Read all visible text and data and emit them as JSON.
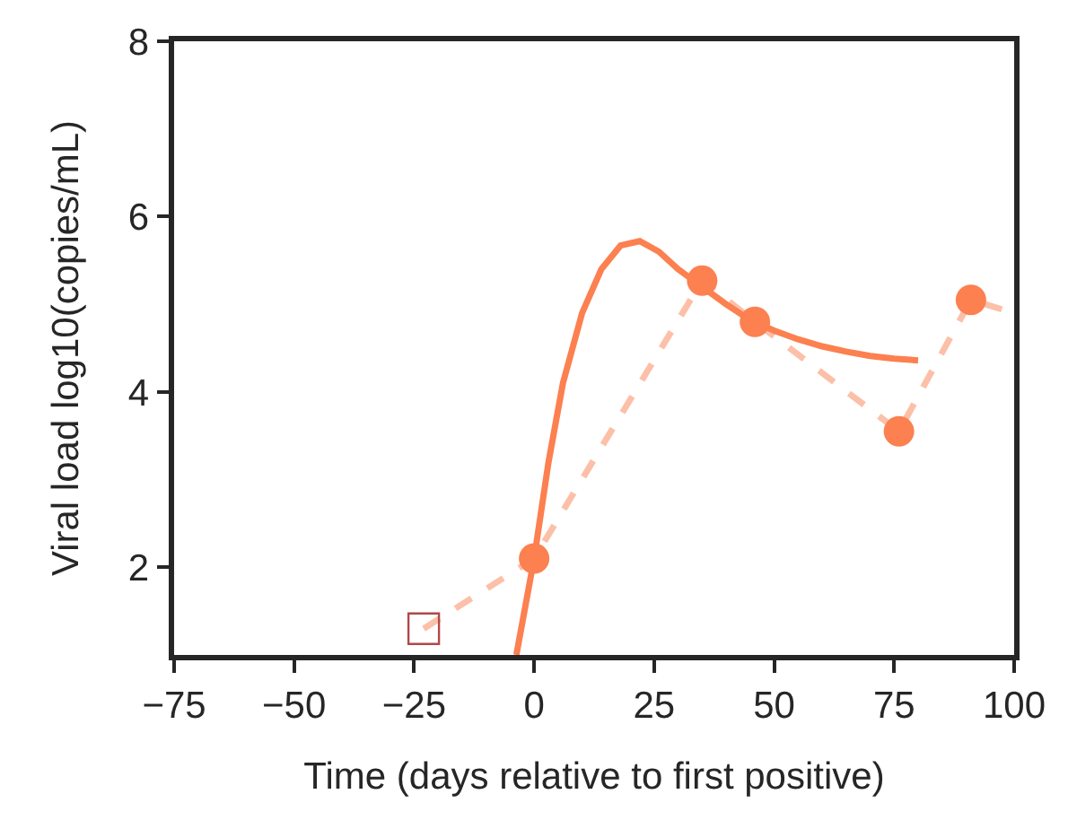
{
  "chart_data": {
    "type": "scatter",
    "xlabel": "Time (days relative to first positive)",
    "ylabel": "Viral load log10(copies/mL)",
    "xlim": [
      -75,
      100
    ],
    "xticks": [
      {
        "value": -75,
        "label": "−75"
      },
      {
        "value": -50,
        "label": "−50"
      },
      {
        "value": -25,
        "label": "−25"
      },
      0,
      25,
      50,
      75,
      100
    ],
    "ylim": [
      1,
      8
    ],
    "yticks": [
      2,
      4,
      6,
      8
    ],
    "grid": false,
    "series": [
      {
        "type": "line",
        "color": "#fcc0a8",
        "line_style": "dashed",
        "marker": "none",
        "x": [
          -23,
          0,
          35,
          46,
          76,
          91,
          100
        ],
        "values": [
          1.3,
          2.1,
          5.27,
          4.8,
          3.55,
          5.05,
          4.9
        ]
      },
      {
        "type": "line",
        "color": "#fc8050",
        "line_style": "solid",
        "marker": "none",
        "x": [
          -3.7,
          0,
          3,
          6,
          10,
          14,
          18,
          22,
          26,
          30,
          35,
          40,
          45,
          50,
          55,
          60,
          65,
          70,
          75,
          80
        ],
        "values": [
          1,
          2.1,
          3.2,
          4.1,
          4.9,
          5.4,
          5.67,
          5.72,
          5.6,
          5.4,
          5.2,
          5.0,
          4.82,
          4.7,
          4.6,
          4.52,
          4.46,
          4.41,
          4.38,
          4.36
        ]
      },
      {
        "color": "#fc8050",
        "marker": "circle",
        "x": [
          0,
          35,
          46,
          76,
          91
        ],
        "values": [
          2.1,
          5.27,
          4.8,
          3.55,
          5.05
        ]
      },
      {
        "color": "#b04848",
        "marker": "square",
        "x": [
          -23
        ],
        "values": [
          1.3
        ]
      }
    ]
  }
}
